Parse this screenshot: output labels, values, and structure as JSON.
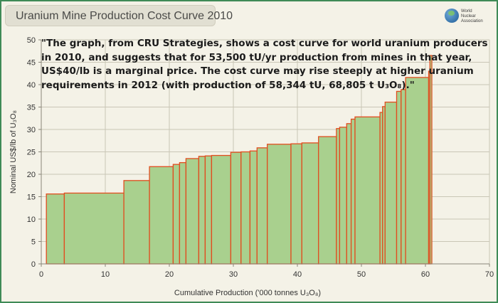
{
  "header": {
    "title": "Uranium Mine Production Cost Curve 2010",
    "logo_lines": [
      "World",
      "Nuclear",
      "Association"
    ]
  },
  "quote_lines": [
    "\"The graph, from CRU Strategies, shows a cost curve for world uranium producers",
    "in 2010, and suggests that for 53,500 tU/yr production from mines in that year,",
    "US$40/lb is a marginal price. The cost curve may rise steeply at higher uranium",
    "requirements in 2012 (with production of 58,344 tU, 68,805 t U₃O₈).\""
  ],
  "colors": {
    "bar_fill": "#a9d08e",
    "bar_stroke": "#e14d1f",
    "frame": "#3f8b57",
    "background": "#f4f2e7",
    "grid": "#c9c6b6"
  },
  "chart_data": {
    "type": "bar",
    "title": "Uranium Mine Production Cost Curve 2010",
    "xlabel": "Cumulative Production ('000 tonnes U₃O₈)",
    "ylabel": "Nominal US$/lb of U₃O₈",
    "xlim": [
      0,
      70
    ],
    "ylim": [
      0,
      50
    ],
    "xticks": [
      0,
      10,
      20,
      30,
      40,
      50,
      60,
      70
    ],
    "yticks": [
      0,
      5,
      10,
      15,
      20,
      25,
      30,
      35,
      40,
      45,
      50
    ],
    "grid": true,
    "bars": [
      {
        "x0": 0.8,
        "x1": 3.6,
        "y": 15.6
      },
      {
        "x0": 3.6,
        "x1": 12.9,
        "y": 15.8
      },
      {
        "x0": 12.9,
        "x1": 16.9,
        "y": 18.6
      },
      {
        "x0": 16.9,
        "x1": 20.6,
        "y": 21.7
      },
      {
        "x0": 20.6,
        "x1": 21.6,
        "y": 22.2
      },
      {
        "x0": 21.6,
        "x1": 22.6,
        "y": 22.6
      },
      {
        "x0": 22.6,
        "x1": 24.6,
        "y": 23.5
      },
      {
        "x0": 24.6,
        "x1": 25.6,
        "y": 24.0
      },
      {
        "x0": 25.6,
        "x1": 26.6,
        "y": 24.1
      },
      {
        "x0": 26.6,
        "x1": 29.6,
        "y": 24.2
      },
      {
        "x0": 29.6,
        "x1": 31.2,
        "y": 24.9
      },
      {
        "x0": 31.2,
        "x1": 32.6,
        "y": 25.0
      },
      {
        "x0": 32.6,
        "x1": 33.7,
        "y": 25.2
      },
      {
        "x0": 33.7,
        "x1": 35.3,
        "y": 25.9
      },
      {
        "x0": 35.3,
        "x1": 39.0,
        "y": 26.7
      },
      {
        "x0": 39.0,
        "x1": 40.7,
        "y": 26.8
      },
      {
        "x0": 40.7,
        "x1": 43.3,
        "y": 27.0
      },
      {
        "x0": 43.3,
        "x1": 46.1,
        "y": 28.4
      },
      {
        "x0": 46.1,
        "x1": 46.6,
        "y": 30.2
      },
      {
        "x0": 46.6,
        "x1": 47.7,
        "y": 30.5
      },
      {
        "x0": 47.7,
        "x1": 48.4,
        "y": 31.3
      },
      {
        "x0": 48.4,
        "x1": 49.0,
        "y": 32.3
      },
      {
        "x0": 49.0,
        "x1": 52.9,
        "y": 32.8
      },
      {
        "x0": 52.9,
        "x1": 53.3,
        "y": 33.8
      },
      {
        "x0": 53.3,
        "x1": 53.7,
        "y": 35.1
      },
      {
        "x0": 53.7,
        "x1": 55.5,
        "y": 36.1
      },
      {
        "x0": 55.5,
        "x1": 56.2,
        "y": 38.5
      },
      {
        "x0": 56.2,
        "x1": 56.9,
        "y": 38.9
      },
      {
        "x0": 56.9,
        "x1": 60.5,
        "y": 41.6
      },
      {
        "x0": 60.5,
        "x1": 60.7,
        "y": 43.0
      },
      {
        "x0": 60.7,
        "x1": 61.0,
        "y": 46.5
      }
    ]
  }
}
